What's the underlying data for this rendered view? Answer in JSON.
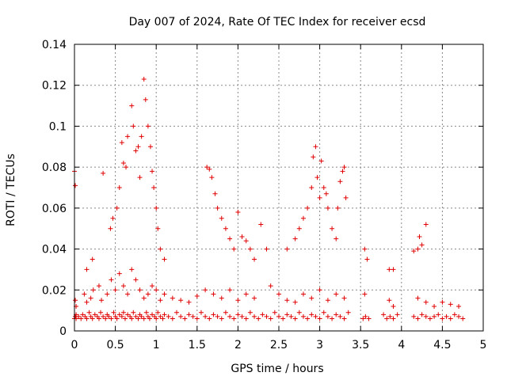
{
  "chart_data": {
    "type": "scatter",
    "title": "Day 007 of 2024, Rate Of TEC Index for receiver ecsd",
    "xlabel": "GPS time / hours",
    "ylabel": "ROTI / TECUs",
    "xlim": [
      0,
      5
    ],
    "ylim": [
      0,
      0.14
    ],
    "x_ticks": [
      "0",
      "0.5",
      "1",
      "1.5",
      "2",
      "2.5",
      "3",
      "3.5",
      "4",
      "4.5",
      "5"
    ],
    "y_ticks": [
      "0",
      "0.02",
      "0.04",
      "0.06",
      "0.08",
      "0.1",
      "0.12",
      "0.14"
    ],
    "grid": true,
    "marker": "+",
    "series_color": "#e00000",
    "series": [
      {
        "name": "ROTI",
        "x": [
          0.0,
          0.01,
          0.02,
          0.02,
          0.05,
          0.08,
          0.1,
          0.13,
          0.15,
          0.18,
          0.2,
          0.22,
          0.25,
          0.28,
          0.3,
          0.32,
          0.35,
          0.38,
          0.4,
          0.42,
          0.45,
          0.48,
          0.5,
          0.52,
          0.55,
          0.58,
          0.6,
          0.62,
          0.65,
          0.68,
          0.7,
          0.72,
          0.75,
          0.78,
          0.8,
          0.82,
          0.85,
          0.88,
          0.9,
          0.92,
          0.95,
          0.98,
          1.0,
          1.02,
          1.05,
          1.08,
          1.1,
          1.15,
          1.2,
          1.25,
          1.3,
          1.35,
          1.4,
          1.45,
          1.5,
          1.55,
          1.6,
          1.65,
          1.7,
          1.75,
          1.8,
          1.85,
          1.9,
          1.95,
          2.0,
          2.05,
          2.1,
          2.15,
          2.2,
          2.25,
          2.3,
          2.35,
          2.4,
          2.45,
          2.5,
          2.55,
          2.6,
          2.65,
          2.7,
          2.75,
          2.8,
          2.85,
          2.9,
          2.95,
          3.0,
          3.05,
          3.1,
          3.15,
          3.2,
          3.25,
          3.3,
          3.35,
          3.53,
          3.56,
          3.6,
          3.78,
          3.82,
          3.86,
          3.9,
          3.95,
          4.15,
          4.2,
          4.25,
          4.3,
          4.35,
          4.4,
          4.45,
          4.5,
          4.55,
          4.6,
          4.65,
          4.7,
          4.75,
          0.01,
          0.02,
          0.12,
          0.15,
          0.2,
          0.23,
          0.3,
          0.33,
          0.4,
          0.45,
          0.5,
          0.55,
          0.6,
          0.65,
          0.7,
          0.75,
          0.8,
          0.85,
          0.9,
          0.95,
          1.0,
          1.05,
          1.1,
          1.2,
          1.3,
          1.4,
          1.5,
          1.6,
          1.7,
          1.8,
          1.9,
          2.0,
          2.1,
          2.2,
          2.4,
          2.5,
          2.6,
          2.7,
          2.8,
          2.9,
          3.0,
          3.1,
          3.2,
          3.3,
          3.55,
          3.85,
          3.9,
          4.2,
          4.3,
          4.4,
          4.5,
          4.6,
          4.7,
          0.0,
          0.01,
          0.15,
          0.22,
          0.35,
          0.44,
          0.47,
          0.52,
          0.55,
          0.58,
          0.6,
          0.63,
          0.65,
          0.7,
          0.72,
          0.75,
          0.78,
          0.8,
          0.82,
          0.85,
          0.87,
          0.9,
          0.93,
          0.95,
          0.97,
          1.0,
          1.02,
          1.05,
          1.1,
          1.62,
          1.65,
          1.68,
          1.72,
          1.75,
          1.8,
          1.85,
          1.9,
          1.95,
          2.0,
          2.05,
          2.1,
          2.15,
          2.2,
          2.28,
          2.35,
          2.6,
          2.7,
          2.75,
          2.8,
          2.85,
          2.9,
          2.92,
          2.95,
          2.97,
          3.0,
          3.02,
          3.05,
          3.08,
          3.1,
          3.15,
          3.2,
          3.22,
          3.25,
          3.28,
          3.3,
          3.32,
          3.55,
          3.58,
          3.85,
          3.9,
          4.15,
          4.2,
          4.22,
          4.25,
          4.3
        ],
        "y": [
          0.006,
          0.007,
          0.006,
          0.008,
          0.007,
          0.006,
          0.008,
          0.007,
          0.006,
          0.009,
          0.007,
          0.006,
          0.008,
          0.007,
          0.006,
          0.009,
          0.007,
          0.006,
          0.008,
          0.007,
          0.006,
          0.009,
          0.007,
          0.006,
          0.008,
          0.007,
          0.009,
          0.006,
          0.008,
          0.007,
          0.006,
          0.009,
          0.007,
          0.006,
          0.008,
          0.007,
          0.006,
          0.009,
          0.007,
          0.006,
          0.008,
          0.007,
          0.006,
          0.009,
          0.007,
          0.006,
          0.008,
          0.007,
          0.006,
          0.009,
          0.007,
          0.006,
          0.008,
          0.007,
          0.006,
          0.009,
          0.007,
          0.006,
          0.008,
          0.007,
          0.006,
          0.009,
          0.007,
          0.006,
          0.008,
          0.007,
          0.006,
          0.009,
          0.007,
          0.006,
          0.008,
          0.007,
          0.006,
          0.009,
          0.007,
          0.006,
          0.008,
          0.007,
          0.006,
          0.009,
          0.007,
          0.006,
          0.008,
          0.007,
          0.006,
          0.009,
          0.007,
          0.006,
          0.008,
          0.007,
          0.006,
          0.009,
          0.006,
          0.007,
          0.006,
          0.008,
          0.006,
          0.007,
          0.006,
          0.008,
          0.007,
          0.006,
          0.008,
          0.007,
          0.006,
          0.007,
          0.008,
          0.006,
          0.007,
          0.006,
          0.008,
          0.007,
          0.006,
          0.015,
          0.012,
          0.018,
          0.014,
          0.016,
          0.02,
          0.022,
          0.015,
          0.018,
          0.025,
          0.02,
          0.028,
          0.022,
          0.018,
          0.03,
          0.025,
          0.02,
          0.016,
          0.018,
          0.022,
          0.02,
          0.015,
          0.018,
          0.016,
          0.015,
          0.014,
          0.017,
          0.02,
          0.018,
          0.016,
          0.02,
          0.015,
          0.018,
          0.016,
          0.022,
          0.018,
          0.015,
          0.014,
          0.018,
          0.016,
          0.02,
          0.015,
          0.018,
          0.016,
          0.018,
          0.015,
          0.012,
          0.016,
          0.014,
          0.012,
          0.014,
          0.013,
          0.012,
          0.078,
          0.071,
          0.03,
          0.035,
          0.077,
          0.05,
          0.055,
          0.06,
          0.07,
          0.092,
          0.082,
          0.08,
          0.095,
          0.11,
          0.1,
          0.088,
          0.09,
          0.075,
          0.095,
          0.123,
          0.113,
          0.1,
          0.09,
          0.078,
          0.07,
          0.06,
          0.05,
          0.04,
          0.035,
          0.08,
          0.079,
          0.075,
          0.067,
          0.06,
          0.055,
          0.05,
          0.045,
          0.04,
          0.058,
          0.046,
          0.044,
          0.04,
          0.035,
          0.052,
          0.04,
          0.04,
          0.045,
          0.05,
          0.055,
          0.06,
          0.07,
          0.085,
          0.09,
          0.075,
          0.065,
          0.083,
          0.07,
          0.067,
          0.06,
          0.05,
          0.045,
          0.06,
          0.073,
          0.078,
          0.08,
          0.065,
          0.04,
          0.035,
          0.03,
          0.03,
          0.039,
          0.04,
          0.046,
          0.042,
          0.052
        ]
      }
    ]
  }
}
